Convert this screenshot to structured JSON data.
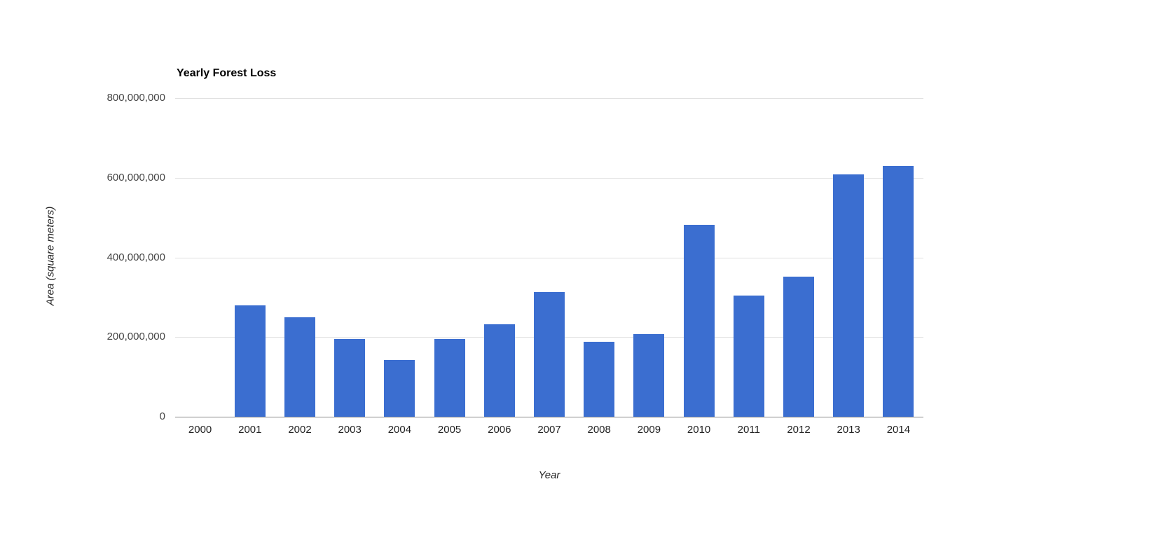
{
  "chart_data": {
    "type": "bar",
    "title": "Yearly Forest Loss",
    "xlabel": "Year",
    "ylabel": "Area (square meters)",
    "categories": [
      "2000",
      "2001",
      "2002",
      "2003",
      "2004",
      "2005",
      "2006",
      "2007",
      "2008",
      "2009",
      "2010",
      "2011",
      "2012",
      "2013",
      "2014"
    ],
    "values": [
      0,
      280000000,
      250000000,
      195000000,
      142000000,
      195000000,
      232000000,
      313000000,
      188000000,
      207000000,
      482000000,
      305000000,
      351000000,
      608000000,
      630000000
    ],
    "ylim": [
      0,
      800000000
    ],
    "yticks": [
      {
        "value": 0,
        "label": "0"
      },
      {
        "value": 200000000,
        "label": "200,000,000"
      },
      {
        "value": 400000000,
        "label": "400,000,000"
      },
      {
        "value": 600000000,
        "label": "600,000,000"
      },
      {
        "value": 800000000,
        "label": "800,000,000"
      }
    ],
    "grid": true,
    "legend": "none",
    "bar_color": "#3b6ed0",
    "background_color": "#ffffff"
  }
}
